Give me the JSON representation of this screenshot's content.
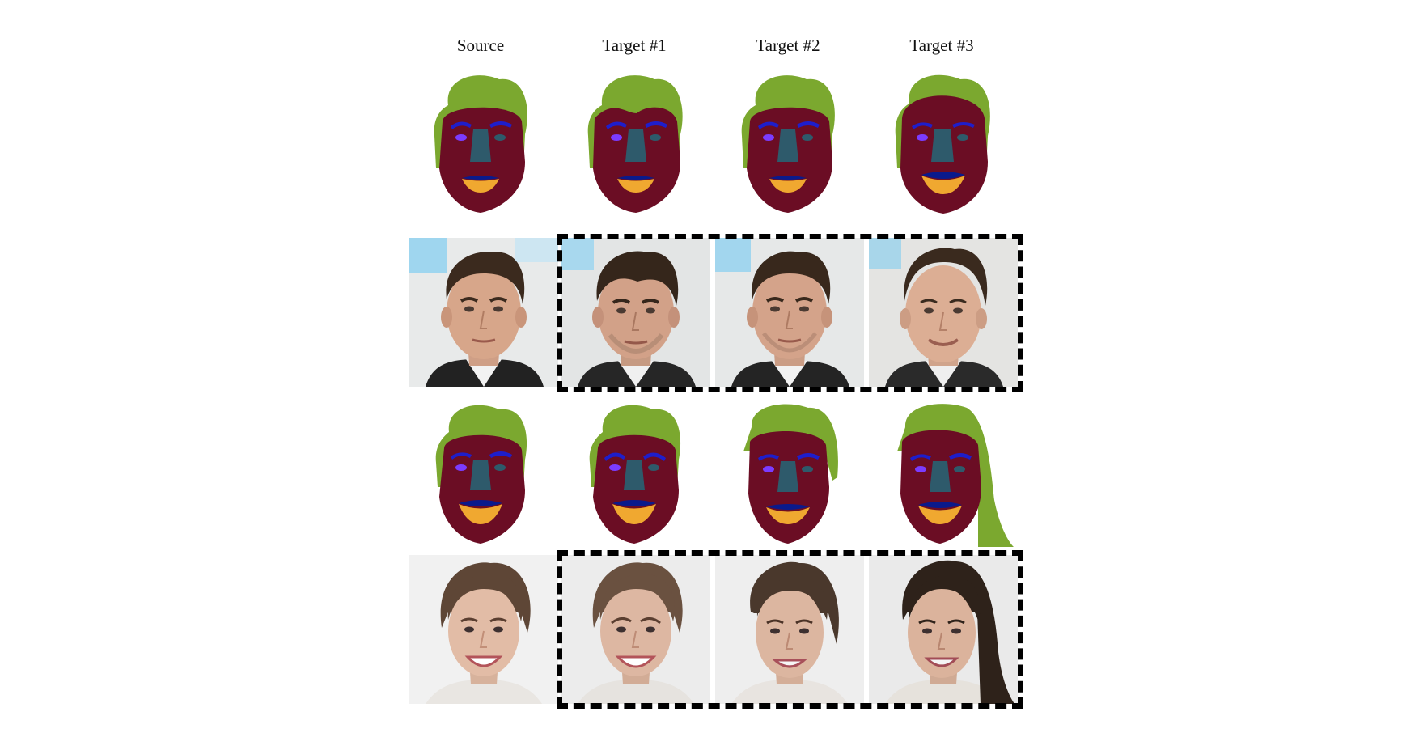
{
  "columns": [
    "Source",
    "Target #1",
    "Target #2",
    "Target #3"
  ],
  "colors": {
    "hair": "#7ba82f",
    "skin": "#6b0d24",
    "nose": "#2e5a6b",
    "brow": "#1e1ecc",
    "eye": "#7b3cff",
    "upper_lip": "#0a1a8c",
    "lower_lip": "#f0a830",
    "dash_frame": "#000000"
  },
  "rows": [
    {
      "kind": "segmentation-mask",
      "subject": "male"
    },
    {
      "kind": "face-photo",
      "subject": "male",
      "framed": [
        "Target #1",
        "Target #2",
        "Target #3"
      ]
    },
    {
      "kind": "segmentation-mask",
      "subject": "female"
    },
    {
      "kind": "face-photo",
      "subject": "female",
      "framed": [
        "Target #1",
        "Target #2",
        "Target #3"
      ]
    }
  ]
}
